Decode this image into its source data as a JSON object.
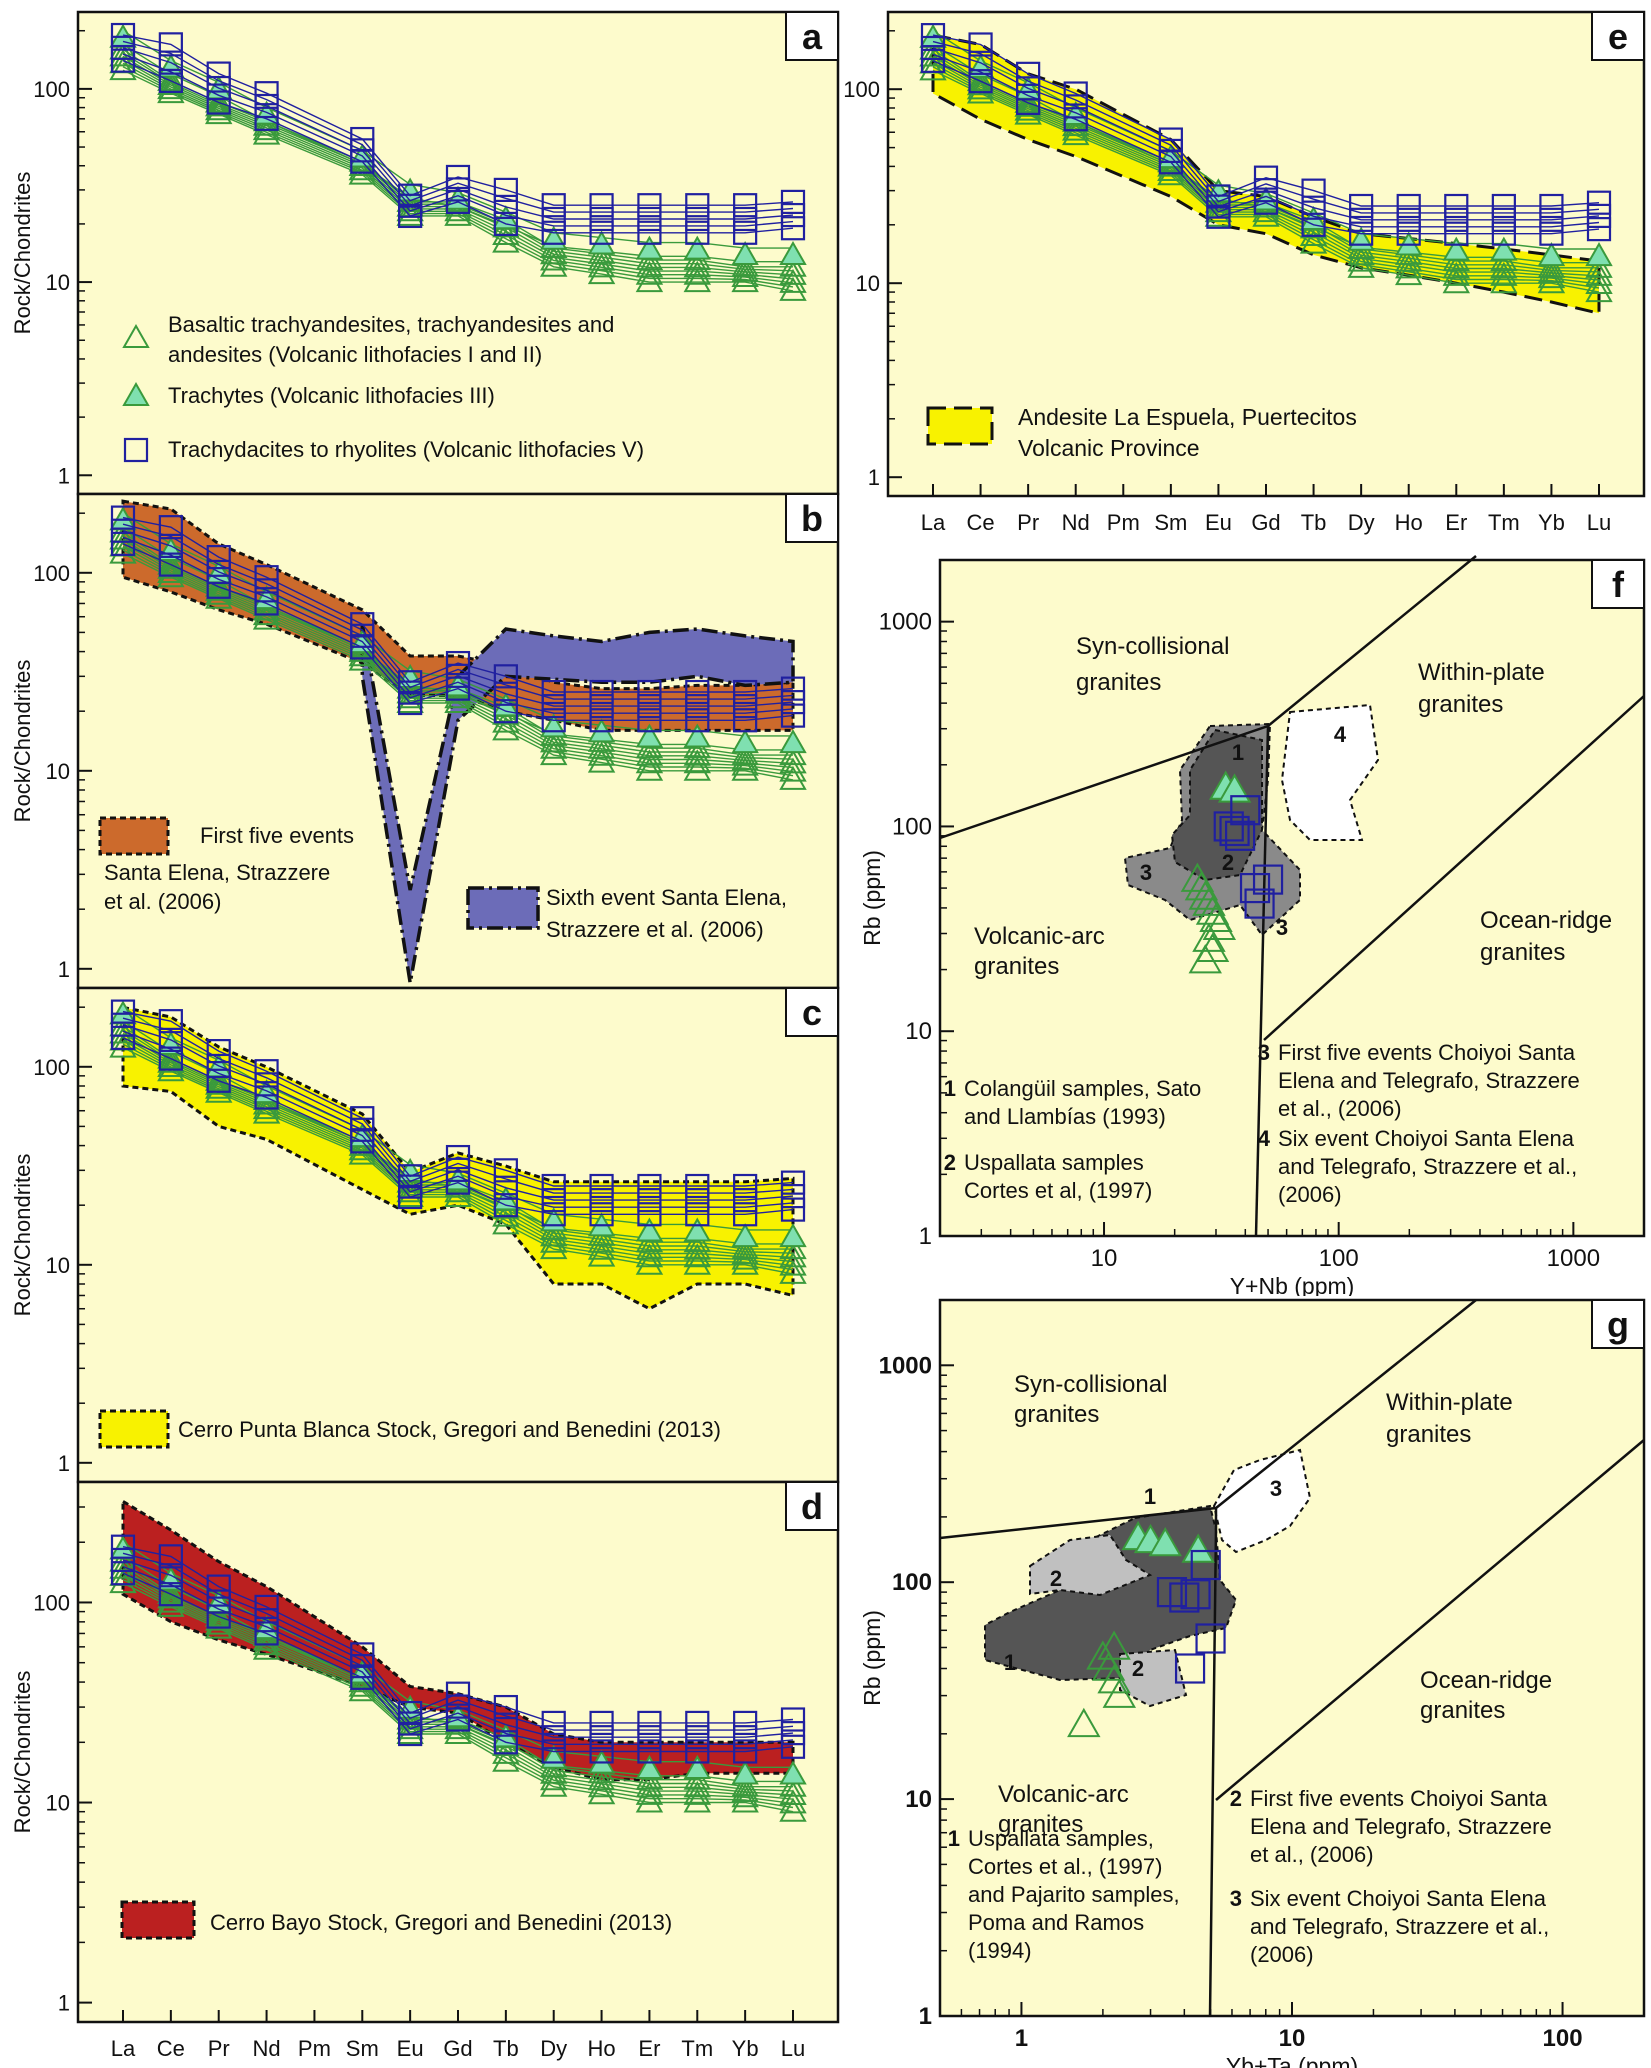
{
  "figure": {
    "ree_elements": [
      "La",
      "Ce",
      "Pr",
      "Nd",
      "Pm",
      "Sm",
      "Eu",
      "Gd",
      "Tb",
      "Dy",
      "Ho",
      "Er",
      "Tm",
      "Yb",
      "Lu"
    ],
    "colors": {
      "background": "#fdfbcc",
      "green": "#3a9a3c",
      "green_fill": "#7fe0b0",
      "blue": "#2020a0",
      "orange": "#cc6a2c",
      "purple": "#6c6cb8",
      "yellow": "#f8f200",
      "red": "#bb2020",
      "dark_gray": "#555555",
      "mid_gray": "#8a8a8a",
      "light_gray": "#c0c0c0"
    }
  },
  "chart_data": [
    {
      "panel": "a",
      "type": "line",
      "ylabel": "Rock/Chondrites",
      "yscale": "log",
      "ylim": [
        0.8,
        250
      ],
      "y_ticks": [
        "1",
        "10",
        "100"
      ],
      "series": [
        {
          "name": "Basaltic trachyandesites, trachyandesites and andesites (Volcanic lithofacies I and II)",
          "marker": "open-triangle",
          "values": [
            [
              160,
              110,
              85,
              68,
              null,
              42,
              26,
              26,
              21,
              15,
              14,
              13,
              13,
              12,
              12
            ],
            [
              125,
              95,
              74,
              58,
              null,
              36,
              22,
              22,
              16,
              12,
              11,
              10,
              10,
              10,
              9
            ]
          ]
        },
        {
          "name": "Trachytes (Volcanic lithofacies III)",
          "marker": "filled-triangle",
          "values": [
            [
              200,
              140,
              108,
              80,
              null,
              48,
              32,
              29,
              23,
              18,
              17,
              16,
              16,
              15,
              15
            ]
          ]
        },
        {
          "name": "Trachydacites to rhyolites (Volcanic lithofacies V)",
          "marker": "open-square",
          "values": [
            [
              190,
              170,
              120,
              95,
              null,
              55,
              28,
              35,
              30,
              25,
              25,
              25,
              25,
              25,
              26
            ],
            [
              140,
              110,
              85,
              70,
              null,
              42,
              22,
              26,
              20,
              18,
              18,
              18,
              18,
              18,
              19
            ]
          ]
        }
      ],
      "legend_lines": [
        "Basaltic trachyandesites, trachyandesites and",
        "andesites (Volcanic lithofacies I and II)",
        "Trachytes (Volcanic lithofacies III)",
        "Trachydacites to rhyolites (Volcanic lithofacies V)"
      ]
    },
    {
      "panel": "b",
      "type": "line",
      "ylabel": "Rock/Chondrites",
      "yscale": "log",
      "ylim": [
        0.8,
        250
      ],
      "y_ticks": [
        "1",
        "10",
        "100"
      ],
      "fields": [
        {
          "name": "First five events Santa Elena, Strazzere et al. (2006)",
          "color": "orange",
          "upper": [
            230,
            210,
            140,
            110,
            null,
            65,
            38,
            38,
            34,
            28,
            26,
            26,
            27,
            27,
            28
          ],
          "lower": [
            95,
            80,
            65,
            55,
            null,
            35,
            24,
            24,
            20,
            18,
            16,
            16,
            16,
            16,
            16
          ]
        },
        {
          "name": "Sixth event Santa Elena, Strazzere et al. (2006)",
          "color": "purple",
          "upper": [
            null,
            null,
            null,
            null,
            null,
            null,
            null,
            null,
            52,
            48,
            45,
            50,
            52,
            48,
            45
          ],
          "lower": [
            null,
            null,
            null,
            null,
            null,
            null,
            null,
            null,
            30,
            29,
            28,
            28,
            30,
            27,
            28
          ]
        }
      ],
      "legend_lines": [
        "First five events",
        "Santa Elena, Strazzere",
        "et al. (2006)",
        "Sixth event Santa Elena,",
        "Strazzere et al. (2006)"
      ]
    },
    {
      "panel": "c",
      "type": "line",
      "ylabel": "Rock/Chondrites",
      "yscale": "log",
      "ylim": [
        0.8,
        250
      ],
      "y_ticks": [
        "1",
        "10",
        "100"
      ],
      "fields": [
        {
          "name": "Cerro Punta Blanca Stock, Gregori and Benedini (2013)",
          "color": "yellow",
          "upper": [
            null,
            null,
            null,
            null,
            null,
            null,
            null,
            null,
            null,
            null,
            null,
            null,
            null,
            null,
            null
          ],
          "lower": [
            80,
            75,
            50,
            43,
            null,
            24,
            18,
            20,
            16,
            8,
            8,
            6,
            8,
            8,
            7
          ]
        }
      ],
      "legend_lines": [
        "Cerro Punta Blanca Stock, Gregori and Benedini (2013)"
      ]
    },
    {
      "panel": "d",
      "type": "line",
      "ylabel": "Rock/Chondrites",
      "yscale": "log",
      "ylim": [
        0.8,
        400
      ],
      "y_ticks": [
        "1",
        "10",
        "100"
      ],
      "fields": [
        {
          "name": "Cerro Bayo Stock, Gregori and Benedini (2013)",
          "color": "red",
          "upper": [
            320,
            230,
            160,
            120,
            null,
            60,
            38,
            35,
            30,
            22,
            20,
            20,
            20,
            20,
            20
          ],
          "lower": [
            110,
            80,
            65,
            55,
            null,
            38,
            30,
            28,
            20,
            15,
            13,
            13,
            14,
            14,
            14
          ]
        }
      ],
      "legend_lines": [
        "Cerro Bayo Stock, Gregori and Benedini (2013)"
      ]
    },
    {
      "panel": "e",
      "type": "line",
      "yscale": "log",
      "ylim": [
        0.8,
        250
      ],
      "y_ticks": [
        "1",
        "10",
        "100"
      ],
      "fields": [
        {
          "name": "Andesite La Espuela, Puertecitos Volcanic Province",
          "color": "yellow",
          "upper": [
            190,
            170,
            120,
            100,
            null,
            55,
            30,
            28,
            22,
            18,
            17,
            16,
            15,
            14,
            13
          ],
          "lower": [
            95,
            70,
            55,
            45,
            null,
            28,
            20,
            18,
            14,
            12,
            11,
            10,
            9,
            8,
            7
          ]
        }
      ],
      "legend_lines": [
        "Andesite La Espuela, Puertecitos",
        "Volcanic Province"
      ]
    },
    {
      "panel": "f",
      "type": "scatter",
      "xlabel": "Y+Nb (ppm)",
      "ylabel": "Rb (ppm)",
      "xscale": "log",
      "yscale": "log",
      "xlim": [
        2,
        2000
      ],
      "ylim": [
        1,
        2000
      ],
      "x_ticks": [
        "10",
        "100",
        "1000"
      ],
      "y_ticks": [
        "1",
        "10",
        "100",
        "1000"
      ],
      "field_labels": [
        "Syn-collisional",
        "granites",
        "Within-plate",
        "granites",
        "Volcanic-arc",
        "granites",
        "Ocean-ridge",
        "granites"
      ],
      "region_numbers": [
        "1",
        "2",
        "3",
        "3",
        "4"
      ],
      "notes": [
        {
          "num": "1",
          "lines": [
            "Colangüil samples, Sato",
            "and Llambías (1993)"
          ]
        },
        {
          "num": "2",
          "lines": [
            "Uspallata samples",
            "Cortes et al, (1997)"
          ]
        },
        {
          "num": "3",
          "lines": [
            "First five events Choiyoi Santa",
            "Elena and Telegrafo, Strazzere",
            "et al., (2006)"
          ]
        },
        {
          "num": "4",
          "lines": [
            "Six event Choiyoi Santa Elena",
            "and Telegrafo, Strazzere et al.,",
            "(2006)"
          ]
        }
      ],
      "series": [
        {
          "name": "open-triangle",
          "points": [
            [
              25,
              55
            ],
            [
              26,
              50
            ],
            [
              27,
              45
            ],
            [
              28,
              42
            ],
            [
              29,
              38
            ],
            [
              30,
              35
            ],
            [
              31,
              32
            ],
            [
              28,
              28
            ],
            [
              29,
              25
            ],
            [
              27,
              22
            ]
          ]
        },
        {
          "name": "filled-triangle",
          "points": [
            [
              33,
              155
            ],
            [
              36,
              150
            ]
          ]
        },
        {
          "name": "open-square",
          "points": [
            [
              34,
              100
            ],
            [
              36,
              95
            ],
            [
              38,
              90
            ],
            [
              40,
              120
            ],
            [
              44,
              50
            ],
            [
              50,
              55
            ],
            [
              46,
              42
            ]
          ]
        }
      ]
    },
    {
      "panel": "g",
      "type": "scatter",
      "xlabel": "Yb+Ta (ppm)",
      "ylabel": "Rb (ppm)",
      "xscale": "log",
      "yscale": "log",
      "xlim": [
        0.5,
        200
      ],
      "ylim": [
        1,
        2000
      ],
      "x_ticks": [
        "1",
        "10",
        "100"
      ],
      "y_ticks": [
        "1",
        "10",
        "100",
        "1000"
      ],
      "field_labels": [
        "Syn-collisional",
        "granites",
        "Within-plate",
        "granites",
        "Volcanic-arc",
        "granites",
        "Ocean-ridge",
        "granites"
      ],
      "region_numbers": [
        "1",
        "1",
        "2",
        "2",
        "3"
      ],
      "notes": [
        {
          "num": "1",
          "lines": [
            "Uspallata samples,",
            "Cortes et al., (1997)",
            "and Pajarito samples,",
            "Poma and Ramos",
            "(1994)"
          ]
        },
        {
          "num": "2",
          "lines": [
            "First five events Choiyoi Santa",
            "Elena and Telegrafo, Strazzere",
            "et al., (2006)"
          ]
        },
        {
          "num": "3",
          "lines": [
            "Six event Choiyoi Santa Elena",
            "and Telegrafo, Strazzere et al.,",
            "(2006)"
          ]
        }
      ],
      "series": [
        {
          "name": "open-triangle",
          "points": [
            [
              1.7,
              22
            ],
            [
              2,
              45
            ],
            [
              2.1,
              40
            ],
            [
              2.2,
              35
            ],
            [
              2.3,
              30
            ],
            [
              2.2,
              50
            ]
          ]
        },
        {
          "name": "filled-triangle",
          "points": [
            [
              2.7,
              160
            ],
            [
              3,
              155
            ],
            [
              3.4,
              150
            ],
            [
              4.5,
              140
            ]
          ]
        },
        {
          "name": "open-square",
          "points": [
            [
              3.6,
              90
            ],
            [
              4,
              85
            ],
            [
              4.4,
              88
            ],
            [
              4.8,
              120
            ],
            [
              5,
              55
            ],
            [
              4.2,
              40
            ]
          ]
        }
      ]
    }
  ]
}
